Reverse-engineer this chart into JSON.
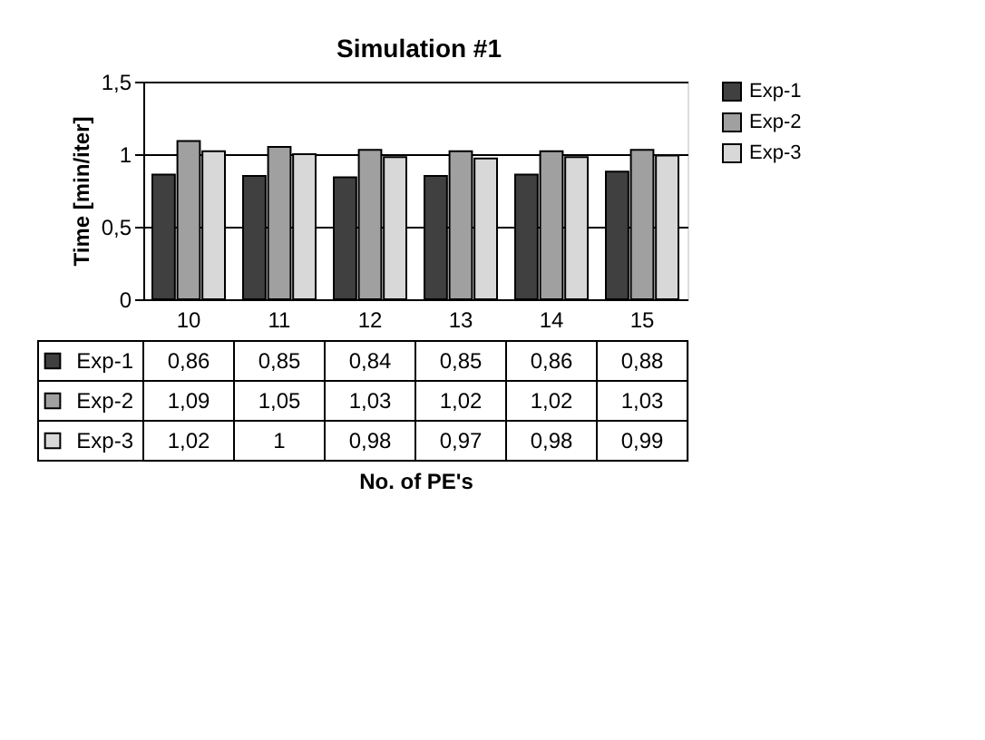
{
  "chart_data": {
    "type": "bar",
    "title": "Simulation #1",
    "annotations": [
      "No. of PE's"
    ],
    "ylabel": "Time [min/iter]",
    "categories": [
      "10",
      "11",
      "12",
      "13",
      "14",
      "15"
    ],
    "series": [
      {
        "name": "Exp-1",
        "color": "#404040",
        "values": [
          0.86,
          0.85,
          0.84,
          0.85,
          0.86,
          0.88
        ],
        "value_labels": [
          "0,86",
          "0,85",
          "0,84",
          "0,85",
          "0,86",
          "0,88"
        ]
      },
      {
        "name": "Exp-2",
        "color": "#a0a0a0",
        "values": [
          1.09,
          1.05,
          1.03,
          1.02,
          1.02,
          1.03
        ],
        "value_labels": [
          "1,09",
          "1,05",
          "1,03",
          "1,02",
          "1,02",
          "1,03"
        ]
      },
      {
        "name": "Exp-3",
        "color": "#d8d8d8",
        "values": [
          1.02,
          1,
          0.98,
          0.97,
          0.98,
          0.99
        ],
        "value_labels": [
          "1,02",
          "1",
          "0,98",
          "0,97",
          "0,98",
          "0,99"
        ]
      }
    ],
    "ylim": [
      0,
      1.5
    ],
    "yticks": [
      0,
      {
        "value": 0.5,
        "label": "0,5"
      },
      1,
      {
        "value": 1.5,
        "label": "1,5"
      }
    ],
    "grid": "y",
    "legend": "right"
  }
}
